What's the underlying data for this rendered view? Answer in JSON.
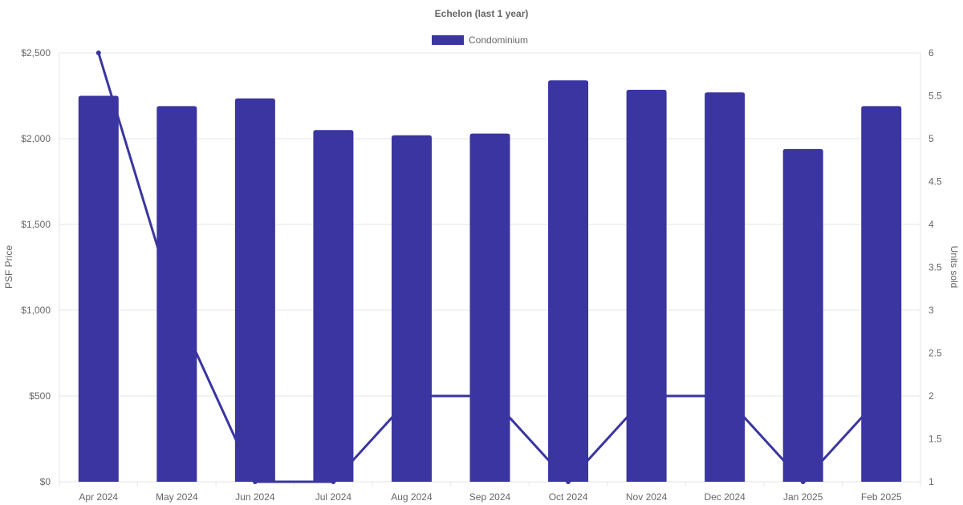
{
  "chart_data": {
    "type": "bar",
    "title": "Echelon (last 1 year)",
    "categories": [
      "Apr 2024",
      "May 2024",
      "Jun 2024",
      "Jul 2024",
      "Aug 2024",
      "Sep 2024",
      "Oct 2024",
      "Nov 2024",
      "Dec 2024",
      "Jan 2025",
      "Feb 2025"
    ],
    "series": [
      {
        "name": "Condominium",
        "type": "bar",
        "axis": "left",
        "color": "#3a35a0",
        "values": [
          2250,
          2190,
          2235,
          2050,
          2020,
          2030,
          2340,
          2285,
          2270,
          1940,
          2190
        ]
      },
      {
        "type": "line",
        "axis": "right",
        "color": "#3a35a0",
        "values": [
          6,
          3,
          1,
          1,
          2,
          2,
          1,
          2,
          2,
          1,
          2
        ]
      }
    ],
    "y_left": {
      "label": "PSF Price",
      "min": 0,
      "max": 2500,
      "ticks": [
        {
          "v": 0,
          "t": "$0"
        },
        {
          "v": 500,
          "t": "$500"
        },
        {
          "v": 1000,
          "t": "$1,000"
        },
        {
          "v": 1500,
          "t": "$1,500"
        },
        {
          "v": 2000,
          "t": "$2,000"
        },
        {
          "v": 2500,
          "t": "$2,500"
        }
      ]
    },
    "y_right": {
      "label": "Units sold",
      "min": 1,
      "max": 6,
      "ticks": [
        {
          "v": 1,
          "t": "1"
        },
        {
          "v": 1.5,
          "t": "1.5"
        },
        {
          "v": 2,
          "t": "2"
        },
        {
          "v": 2.5,
          "t": "2.5"
        },
        {
          "v": 3,
          "t": "3"
        },
        {
          "v": 3.5,
          "t": "3.5"
        },
        {
          "v": 4,
          "t": "4"
        },
        {
          "v": 4.5,
          "t": "4.5"
        },
        {
          "v": 5,
          "t": "5"
        },
        {
          "v": 5.5,
          "t": "5.5"
        },
        {
          "v": 6,
          "t": "6"
        }
      ]
    },
    "grid": true,
    "legend": "top-center"
  }
}
